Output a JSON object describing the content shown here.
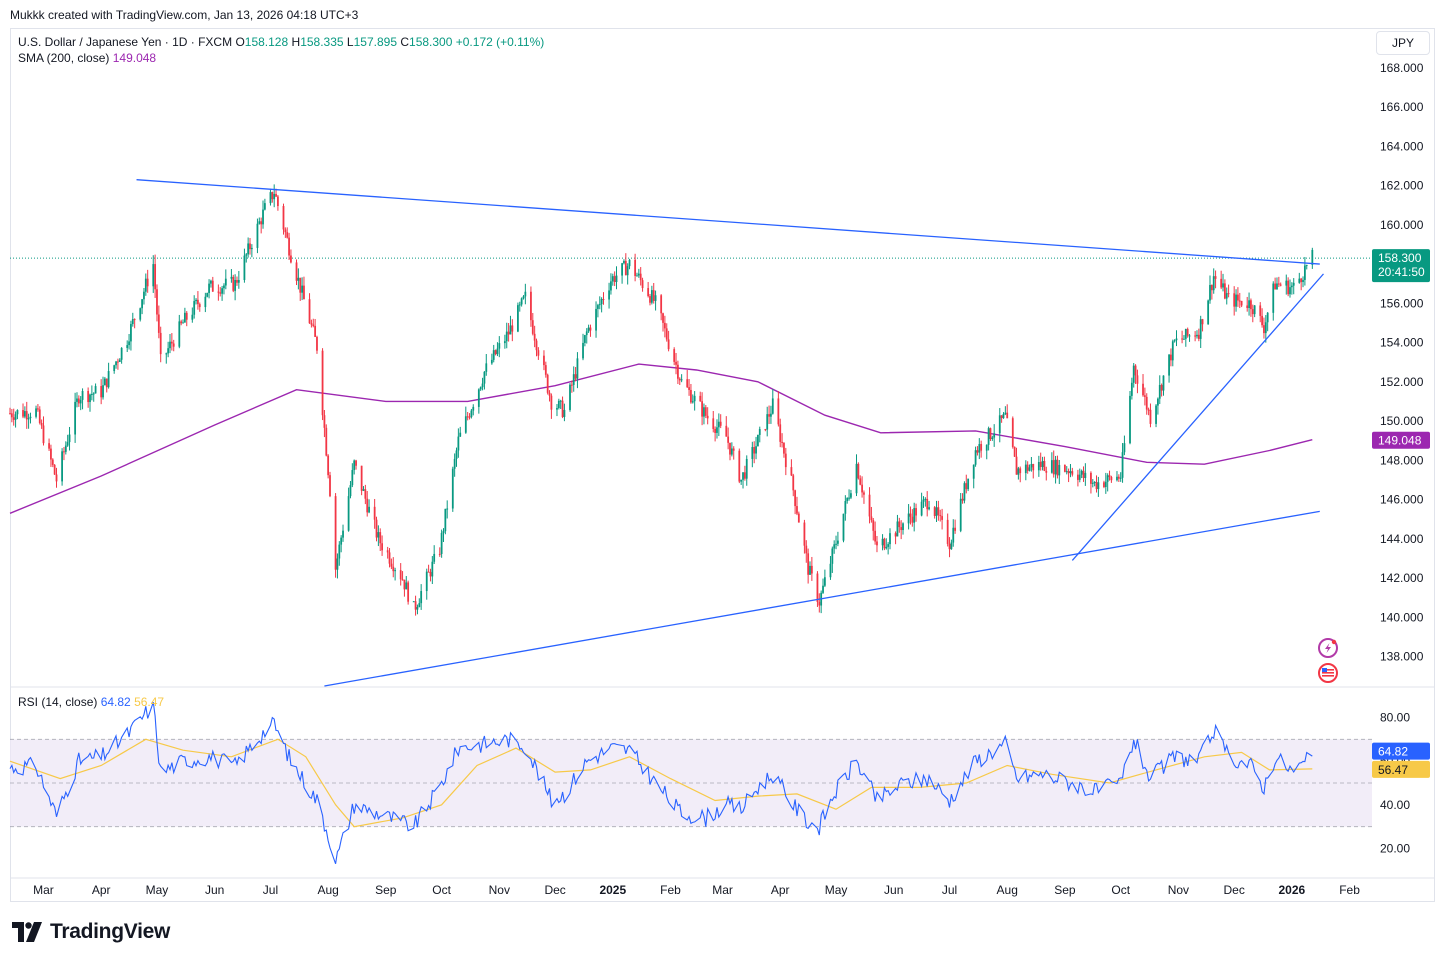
{
  "header": {
    "credit": "Mukkk created with TradingView.com, Jan 13, 2026 04:18 UTC+3"
  },
  "legend": {
    "symbol": "U.S. Dollar / Japanese Yen · 1D · FXCM",
    "o_label": "O",
    "o_val": "158.128",
    "h_label": "H",
    "h_val": "158.335",
    "l_label": "L",
    "l_val": "157.895",
    "c_label": "C",
    "c_val": "158.300",
    "change": "+0.172 (+0.11%)",
    "sma_label": "SMA (200, close)",
    "sma_val": "149.048",
    "rsi_label": "RSI (14, close)",
    "rsi_val": "64.82",
    "rsi_ma_val": "56.47"
  },
  "currency_button": "JPY",
  "badges": {
    "price": "158.300",
    "countdown": "20:41:50",
    "sma": "149.048",
    "rsi": "64.82",
    "rsi_ma": "56.47"
  },
  "footer": {
    "brand": "TradingView"
  },
  "colors": {
    "up": "#089981",
    "down": "#f23645",
    "sma": "#9c27b0",
    "trend": "#2962ff",
    "rsi": "#2962ff",
    "rsi_ma": "#f7c948",
    "rsi_band": "#ede7f6"
  },
  "chart_data": [
    {
      "type": "candlestick",
      "title": "U.S. Dollar / Japanese Yen · 1D · FXCM",
      "y_axis_ticks": [
        "138.000",
        "140.000",
        "142.000",
        "144.000",
        "146.000",
        "148.000",
        "150.000",
        "152.000",
        "154.000",
        "156.000",
        "158.000",
        "160.000",
        "162.000",
        "164.000",
        "166.000",
        "168.000"
      ],
      "ylim": [
        136.5,
        168.5
      ],
      "x_axis_ticks": [
        "Mar",
        "Apr",
        "May",
        "Jun",
        "Jul",
        "Aug",
        "Sep",
        "Oct",
        "Nov",
        "Dec",
        "2025",
        "Feb",
        "Mar",
        "Apr",
        "May",
        "Jun",
        "Jul",
        "Aug",
        "Sep",
        "Oct",
        "Nov",
        "Dec",
        "2026",
        "Feb"
      ],
      "x_range": [
        "2024-02-12",
        "2026-02-12"
      ],
      "close_path": [
        [
          "2024-02-12",
          150.4
        ],
        [
          "2024-02-26",
          150.5
        ],
        [
          "2024-03-08",
          147.0
        ],
        [
          "2024-03-20",
          151.3
        ],
        [
          "2024-04-01",
          151.5
        ],
        [
          "2024-04-15",
          154.2
        ],
        [
          "2024-04-29",
          158.0
        ],
        [
          "2024-05-03",
          153.0
        ],
        [
          "2024-05-15",
          155.0
        ],
        [
          "2024-05-29",
          156.8
        ],
        [
          "2024-06-12",
          157.0
        ],
        [
          "2024-06-28",
          160.8
        ],
        [
          "2024-07-03",
          161.7
        ],
        [
          "2024-07-12",
          158.5
        ],
        [
          "2024-07-26",
          153.8
        ],
        [
          "2024-08-02",
          146.5
        ],
        [
          "2024-08-05",
          142.5
        ],
        [
          "2024-08-15",
          147.8
        ],
        [
          "2024-08-28",
          144.0
        ],
        [
          "2024-09-10",
          142.0
        ],
        [
          "2024-09-16",
          140.4
        ],
        [
          "2024-09-30",
          143.5
        ],
        [
          "2024-10-10",
          149.0
        ],
        [
          "2024-10-24",
          152.5
        ],
        [
          "2024-11-06",
          154.5
        ],
        [
          "2024-11-15",
          156.3
        ],
        [
          "2024-11-29",
          151.0
        ],
        [
          "2024-12-06",
          150.5
        ],
        [
          "2024-12-18",
          154.5
        ],
        [
          "2024-12-31",
          157.2
        ],
        [
          "2025-01-10",
          158.0
        ],
        [
          "2025-01-24",
          156.0
        ],
        [
          "2025-02-07",
          152.0
        ],
        [
          "2025-02-20",
          150.3
        ],
        [
          "2025-03-03",
          149.2
        ],
        [
          "2025-03-11",
          147.0
        ],
        [
          "2025-03-20",
          149.0
        ],
        [
          "2025-03-28",
          150.8
        ],
        [
          "2025-04-08",
          146.5
        ],
        [
          "2025-04-16",
          142.5
        ],
        [
          "2025-04-22",
          140.8
        ],
        [
          "2025-04-30",
          143.5
        ],
        [
          "2025-05-12",
          147.8
        ],
        [
          "2025-05-23",
          143.5
        ],
        [
          "2025-06-06",
          144.8
        ],
        [
          "2025-06-20",
          146.0
        ],
        [
          "2025-07-01",
          143.8
        ],
        [
          "2025-07-15",
          148.5
        ],
        [
          "2025-07-31",
          150.2
        ],
        [
          "2025-08-06",
          147.5
        ],
        [
          "2025-08-20",
          147.8
        ],
        [
          "2025-09-05",
          147.5
        ],
        [
          "2025-09-17",
          146.8
        ],
        [
          "2025-10-01",
          147.2
        ],
        [
          "2025-10-08",
          152.8
        ],
        [
          "2025-10-17",
          150.2
        ],
        [
          "2025-10-30",
          154.0
        ],
        [
          "2025-11-12",
          154.6
        ],
        [
          "2025-11-20",
          157.4
        ],
        [
          "2025-11-28",
          156.2
        ],
        [
          "2025-12-10",
          156.0
        ],
        [
          "2025-12-17",
          154.8
        ],
        [
          "2025-12-23",
          157.0
        ],
        [
          "2026-01-02",
          156.8
        ],
        [
          "2026-01-09",
          157.9
        ],
        [
          "2026-01-12",
          158.3
        ]
      ],
      "sma200": {
        "name": "SMA (200, close)",
        "points": [
          [
            "2024-02-12",
            145.3
          ],
          [
            "2024-04-01",
            147.2
          ],
          [
            "2024-06-01",
            149.8
          ],
          [
            "2024-07-15",
            151.6
          ],
          [
            "2024-09-01",
            151.0
          ],
          [
            "2024-10-15",
            151.0
          ],
          [
            "2024-12-01",
            151.8
          ],
          [
            "2025-01-15",
            152.9
          ],
          [
            "2025-02-15",
            152.6
          ],
          [
            "2025-03-20",
            152.0
          ],
          [
            "2025-04-25",
            150.3
          ],
          [
            "2025-05-25",
            149.4
          ],
          [
            "2025-07-15",
            149.5
          ],
          [
            "2025-09-01",
            148.7
          ],
          [
            "2025-10-15",
            147.9
          ],
          [
            "2025-11-15",
            147.8
          ],
          [
            "2025-12-20",
            148.5
          ],
          [
            "2026-01-12",
            149.048
          ]
        ]
      },
      "trendlines": [
        {
          "from": [
            "2024-04-20",
            162.3
          ],
          "to": [
            "2026-01-16",
            158.0
          ]
        },
        {
          "from": [
            "2024-07-30",
            136.5
          ],
          "to": [
            "2026-01-16",
            145.4
          ]
        },
        {
          "from": [
            "2025-09-05",
            142.9
          ],
          "to": [
            "2026-01-18",
            157.5
          ]
        }
      ],
      "last_price": 158.3
    },
    {
      "type": "line",
      "title": "RSI (14, close)",
      "y_axis_ticks": [
        "20.00",
        "40.00",
        "60.00",
        "80.00"
      ],
      "ylim": [
        12,
        88
      ],
      "band": [
        30,
        70
      ],
      "midline": 50,
      "x_range": [
        "2024-02-12",
        "2026-02-12"
      ],
      "series": [
        {
          "name": "RSI",
          "values": [
            [
              "2024-02-12",
              57
            ],
            [
              "2024-02-26",
              58
            ],
            [
              "2024-03-08",
              35
            ],
            [
              "2024-03-20",
              60
            ],
            [
              "2024-04-01",
              62
            ],
            [
              "2024-04-15",
              72
            ],
            [
              "2024-04-29",
              86
            ],
            [
              "2024-05-03",
              55
            ],
            [
              "2024-05-15",
              60
            ],
            [
              "2024-05-29",
              62
            ],
            [
              "2024-06-12",
              58
            ],
            [
              "2024-06-28",
              74
            ],
            [
              "2024-07-03",
              77
            ],
            [
              "2024-07-12",
              60
            ],
            [
              "2024-07-26",
              42
            ],
            [
              "2024-08-02",
              24
            ],
            [
              "2024-08-05",
              14
            ],
            [
              "2024-08-15",
              40
            ],
            [
              "2024-08-28",
              36
            ],
            [
              "2024-09-10",
              32
            ],
            [
              "2024-09-16",
              30
            ],
            [
              "2024-09-30",
              48
            ],
            [
              "2024-10-10",
              66
            ],
            [
              "2024-10-24",
              68
            ],
            [
              "2024-11-06",
              70
            ],
            [
              "2024-11-15",
              67
            ],
            [
              "2024-11-29",
              42
            ],
            [
              "2024-12-06",
              45
            ],
            [
              "2024-12-18",
              60
            ],
            [
              "2024-12-31",
              66
            ],
            [
              "2025-01-10",
              65
            ],
            [
              "2025-01-24",
              50
            ],
            [
              "2025-02-07",
              36
            ],
            [
              "2025-02-20",
              34
            ],
            [
              "2025-03-03",
              40
            ],
            [
              "2025-03-11",
              38
            ],
            [
              "2025-03-20",
              48
            ],
            [
              "2025-03-28",
              54
            ],
            [
              "2025-04-08",
              40
            ],
            [
              "2025-04-16",
              32
            ],
            [
              "2025-04-22",
              30
            ],
            [
              "2025-04-30",
              45
            ],
            [
              "2025-05-12",
              60
            ],
            [
              "2025-05-23",
              42
            ],
            [
              "2025-06-06",
              50
            ],
            [
              "2025-06-20",
              52
            ],
            [
              "2025-07-01",
              42
            ],
            [
              "2025-07-15",
              60
            ],
            [
              "2025-07-31",
              68
            ],
            [
              "2025-08-06",
              52
            ],
            [
              "2025-08-20",
              54
            ],
            [
              "2025-09-05",
              50
            ],
            [
              "2025-09-17",
              46
            ],
            [
              "2025-10-01",
              50
            ],
            [
              "2025-10-08",
              70
            ],
            [
              "2025-10-17",
              52
            ],
            [
              "2025-10-30",
              62
            ],
            [
              "2025-11-12",
              60
            ],
            [
              "2025-11-20",
              74
            ],
            [
              "2025-11-28",
              62
            ],
            [
              "2025-12-10",
              58
            ],
            [
              "2025-12-17",
              48
            ],
            [
              "2025-12-23",
              62
            ],
            [
              "2026-01-02",
              55
            ],
            [
              "2026-01-09",
              60
            ],
            [
              "2026-01-12",
              64.82
            ]
          ]
        },
        {
          "name": "RSI-based MA",
          "values": [
            [
              "2024-02-12",
              60
            ],
            [
              "2024-03-10",
              52
            ],
            [
              "2024-04-01",
              58
            ],
            [
              "2024-04-25",
              70
            ],
            [
              "2024-05-15",
              65
            ],
            [
              "2024-06-10",
              62
            ],
            [
              "2024-07-05",
              70
            ],
            [
              "2024-07-20",
              62
            ],
            [
              "2024-08-05",
              40
            ],
            [
              "2024-08-15",
              30
            ],
            [
              "2024-09-10",
              34
            ],
            [
              "2024-10-01",
              40
            ],
            [
              "2024-10-20",
              58
            ],
            [
              "2024-11-10",
              66
            ],
            [
              "2024-12-01",
              55
            ],
            [
              "2024-12-20",
              56
            ],
            [
              "2025-01-10",
              62
            ],
            [
              "2025-02-01",
              52
            ],
            [
              "2025-02-25",
              42
            ],
            [
              "2025-03-20",
              44
            ],
            [
              "2025-04-10",
              45
            ],
            [
              "2025-05-01",
              38
            ],
            [
              "2025-05-20",
              48
            ],
            [
              "2025-06-15",
              48
            ],
            [
              "2025-07-10",
              50
            ],
            [
              "2025-08-01",
              58
            ],
            [
              "2025-08-25",
              54
            ],
            [
              "2025-09-25",
              50
            ],
            [
              "2025-10-20",
              56
            ],
            [
              "2025-11-15",
              62
            ],
            [
              "2025-12-05",
              64
            ],
            [
              "2025-12-20",
              56
            ],
            [
              "2026-01-12",
              56.47
            ]
          ]
        }
      ]
    }
  ]
}
